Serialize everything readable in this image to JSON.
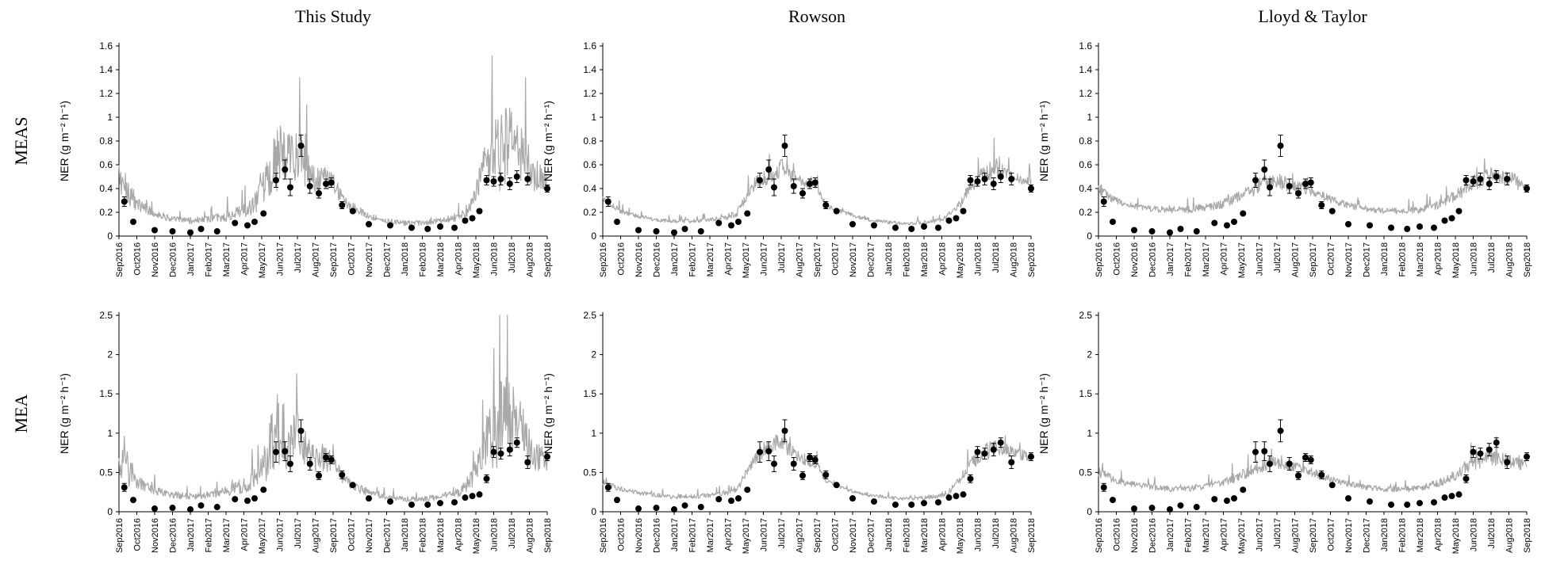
{
  "chart_data": {
    "type": "panel-grid",
    "columns": [
      "This Study",
      "Rowson",
      "Lloyd & Taylor"
    ],
    "rows": [
      {
        "label": "MEAS",
        "ylabel": "NER (g m⁻² h⁻¹)",
        "ylim": [
          0,
          1.6
        ],
        "yticks": [
          "0",
          "0.2",
          "0.4",
          "0.6",
          "0.8",
          "1",
          "1.2",
          "1.4",
          "1.6"
        ]
      },
      {
        "label": "MEA",
        "ylabel": "NER (g m⁻² h⁻¹)",
        "ylim": [
          0,
          2.5
        ],
        "yticks": [
          "0",
          "0.5",
          "1",
          "1.5",
          "2",
          "2.5"
        ]
      }
    ],
    "x_months": [
      "Sep2016",
      "Oct2016",
      "Nov2016",
      "Dec2016",
      "Jan2017",
      "Feb2017",
      "Mar2017",
      "Apr2017",
      "May2017",
      "Jun2017",
      "Jul2017",
      "Aug2017",
      "Sep2017",
      "Oct2017",
      "Nov2017",
      "Dec2017",
      "Jan2018",
      "Feb2018",
      "Mar2018",
      "Apr2018",
      "May2018",
      "Jun2018",
      "Jul2018",
      "Aug2018",
      "Sep2018"
    ],
    "observations": {
      "MEAS": {
        "t": [
          0.3,
          0.8,
          2.0,
          3.0,
          4.0,
          4.6,
          5.5,
          6.5,
          7.2,
          7.6,
          8.1,
          8.8,
          9.3,
          9.6,
          10.2,
          10.7,
          11.2,
          11.6,
          11.9,
          12.5,
          13.1,
          14.0,
          15.2,
          16.4,
          17.3,
          18.0,
          18.8,
          19.4,
          19.8,
          20.2,
          20.6,
          21.0,
          21.4,
          21.9,
          22.3,
          22.9,
          24.0
        ],
        "y": [
          0.29,
          0.12,
          0.05,
          0.04,
          0.03,
          0.06,
          0.04,
          0.11,
          0.09,
          0.12,
          0.19,
          0.47,
          0.56,
          0.41,
          0.76,
          0.42,
          0.36,
          0.44,
          0.45,
          0.26,
          0.21,
          0.1,
          0.09,
          0.07,
          0.06,
          0.08,
          0.07,
          0.13,
          0.15,
          0.21,
          0.47,
          0.46,
          0.48,
          0.44,
          0.5,
          0.48,
          0.4
        ],
        "err": [
          0.04,
          0,
          0,
          0,
          0,
          0,
          0,
          0,
          0,
          0,
          0,
          0.06,
          0.08,
          0.07,
          0.09,
          0.06,
          0.04,
          0.04,
          0.04,
          0.03,
          0,
          0,
          0,
          0,
          0,
          0,
          0,
          0,
          0,
          0,
          0.04,
          0.04,
          0.05,
          0.05,
          0.05,
          0.05,
          0.03
        ]
      },
      "MEA": {
        "t": [
          0.3,
          0.8,
          2.0,
          3.0,
          4.0,
          4.6,
          5.5,
          6.5,
          7.2,
          7.6,
          8.1,
          8.8,
          9.3,
          9.6,
          10.2,
          10.7,
          11.2,
          11.6,
          11.9,
          12.5,
          13.1,
          14.0,
          15.2,
          16.4,
          17.3,
          18.0,
          18.8,
          19.4,
          19.8,
          20.2,
          20.6,
          21.0,
          21.4,
          21.9,
          22.3,
          22.9,
          24.0
        ],
        "y": [
          0.31,
          0.15,
          0.04,
          0.05,
          0.03,
          0.08,
          0.06,
          0.16,
          0.14,
          0.17,
          0.28,
          0.76,
          0.77,
          0.61,
          1.03,
          0.61,
          0.46,
          0.69,
          0.66,
          0.47,
          0.34,
          0.17,
          0.13,
          0.09,
          0.09,
          0.11,
          0.12,
          0.18,
          0.2,
          0.22,
          0.42,
          0.76,
          0.74,
          0.79,
          0.88,
          0.63,
          0.7
        ],
        "err": [
          0.05,
          0,
          0,
          0,
          0,
          0,
          0,
          0,
          0,
          0,
          0,
          0.13,
          0.12,
          0.1,
          0.14,
          0.08,
          0.05,
          0.05,
          0.05,
          0.05,
          0,
          0,
          0,
          0,
          0,
          0,
          0,
          0,
          0,
          0,
          0.05,
          0.07,
          0.07,
          0.08,
          0.06,
          0.08,
          0.05
        ]
      }
    },
    "model_envelope": {
      "note": "estimated central model output; daily variability drawn as grey trace",
      "This Study": {
        "MEAS": {
          "t": [
            0,
            0.5,
            1,
            2,
            3,
            4,
            5,
            6,
            7,
            7.5,
            8,
            8.5,
            9,
            9.5,
            10,
            10.5,
            11,
            11.5,
            12,
            12.5,
            13,
            14,
            15,
            16,
            17,
            18,
            19,
            19.5,
            20,
            20.5,
            21,
            21.5,
            22,
            22.5,
            23,
            23.5,
            24
          ],
          "y": [
            0.45,
            0.33,
            0.25,
            0.18,
            0.13,
            0.12,
            0.13,
            0.15,
            0.18,
            0.22,
            0.3,
            0.45,
            0.6,
            0.55,
            0.62,
            0.5,
            0.42,
            0.45,
            0.42,
            0.3,
            0.24,
            0.16,
            0.12,
            0.1,
            0.1,
            0.12,
            0.15,
            0.2,
            0.3,
            0.5,
            0.55,
            0.62,
            0.68,
            0.6,
            0.5,
            0.45,
            0.42
          ],
          "amp": [
            0.2,
            0.25,
            0.1,
            0.06,
            0.05,
            0.05,
            0.05,
            0.08,
            0.12,
            0.14,
            0.25,
            0.45,
            0.55,
            0.45,
            0.4,
            0.3,
            0.2,
            0.18,
            0.15,
            0.1,
            0.08,
            0.05,
            0.04,
            0.04,
            0.04,
            0.05,
            0.07,
            0.1,
            0.2,
            0.35,
            0.55,
            0.7,
            0.55,
            0.45,
            0.35,
            0.25,
            0.15
          ]
        },
        "MEA": {
          "t": [
            0,
            0.5,
            1,
            2,
            3,
            4,
            5,
            6,
            7,
            7.5,
            8,
            8.5,
            9,
            9.5,
            10,
            10.5,
            11,
            11.5,
            12,
            12.5,
            13,
            14,
            15,
            16,
            17,
            18,
            19,
            19.5,
            20,
            20.5,
            21,
            21.5,
            22,
            22.5,
            23,
            23.5,
            24
          ],
          "y": [
            0.6,
            0.45,
            0.35,
            0.25,
            0.2,
            0.18,
            0.2,
            0.24,
            0.3,
            0.36,
            0.45,
            0.7,
            0.9,
            0.75,
            0.9,
            0.7,
            0.6,
            0.62,
            0.58,
            0.42,
            0.32,
            0.22,
            0.17,
            0.15,
            0.15,
            0.17,
            0.22,
            0.3,
            0.45,
            0.75,
            0.85,
            0.95,
            1.1,
            0.9,
            0.75,
            0.65,
            0.6
          ],
          "amp": [
            0.35,
            0.45,
            0.15,
            0.1,
            0.08,
            0.08,
            0.08,
            0.12,
            0.18,
            0.22,
            0.35,
            0.7,
            0.85,
            0.7,
            0.6,
            0.45,
            0.3,
            0.28,
            0.25,
            0.15,
            0.12,
            0.08,
            0.06,
            0.06,
            0.06,
            0.08,
            0.1,
            0.15,
            0.3,
            0.55,
            0.85,
            1.1,
            0.9,
            0.7,
            0.55,
            0.4,
            0.25
          ]
        }
      },
      "Rowson": {
        "MEAS": {
          "t": [
            0,
            1,
            2,
            3,
            4,
            5,
            6,
            7,
            7.5,
            8,
            8.5,
            9,
            9.5,
            10,
            10.5,
            11,
            11.5,
            12,
            12.5,
            13,
            14,
            15,
            16,
            17,
            18,
            19,
            19.5,
            20,
            20.5,
            21,
            21.5,
            22,
            22.5,
            23,
            24
          ],
          "y": [
            0.3,
            0.2,
            0.16,
            0.13,
            0.12,
            0.12,
            0.13,
            0.15,
            0.18,
            0.3,
            0.42,
            0.46,
            0.5,
            0.55,
            0.5,
            0.45,
            0.42,
            0.4,
            0.25,
            0.22,
            0.17,
            0.13,
            0.11,
            0.1,
            0.11,
            0.13,
            0.18,
            0.25,
            0.38,
            0.45,
            0.5,
            0.55,
            0.5,
            0.48,
            0.45
          ],
          "amp": [
            0.06,
            0.04,
            0.03,
            0.03,
            0.03,
            0.03,
            0.03,
            0.04,
            0.05,
            0.08,
            0.1,
            0.12,
            0.14,
            0.15,
            0.12,
            0.1,
            0.08,
            0.07,
            0.04,
            0.03,
            0.03,
            0.03,
            0.03,
            0.03,
            0.03,
            0.03,
            0.05,
            0.07,
            0.1,
            0.12,
            0.15,
            0.15,
            0.12,
            0.1,
            0.08
          ]
        },
        "MEA": {
          "t": [
            0,
            1,
            2,
            3,
            4,
            5,
            6,
            7,
            7.5,
            8,
            8.5,
            9,
            9.5,
            10,
            10.5,
            11,
            11.5,
            12,
            12.5,
            13,
            14,
            15,
            16,
            17,
            18,
            19,
            19.5,
            20,
            20.5,
            21,
            21.5,
            22,
            22.5,
            23,
            24
          ],
          "y": [
            0.35,
            0.28,
            0.23,
            0.2,
            0.18,
            0.18,
            0.2,
            0.23,
            0.28,
            0.45,
            0.65,
            0.72,
            0.8,
            0.85,
            0.75,
            0.68,
            0.62,
            0.58,
            0.38,
            0.33,
            0.25,
            0.2,
            0.17,
            0.16,
            0.17,
            0.2,
            0.26,
            0.38,
            0.55,
            0.65,
            0.72,
            0.8,
            0.75,
            0.72,
            0.68
          ],
          "amp": [
            0.08,
            0.06,
            0.05,
            0.05,
            0.05,
            0.05,
            0.05,
            0.06,
            0.08,
            0.12,
            0.15,
            0.18,
            0.2,
            0.22,
            0.18,
            0.15,
            0.12,
            0.1,
            0.06,
            0.05,
            0.04,
            0.04,
            0.04,
            0.04,
            0.04,
            0.05,
            0.07,
            0.1,
            0.14,
            0.17,
            0.2,
            0.2,
            0.18,
            0.15,
            0.12
          ]
        }
      },
      "Lloyd & Taylor": {
        "MEAS": {
          "t": [
            0,
            1,
            2,
            3,
            4,
            5,
            6,
            7,
            8,
            9,
            10,
            11,
            12,
            13,
            14,
            15,
            16,
            17,
            18,
            19,
            20,
            21,
            22,
            23,
            24
          ],
          "y": [
            0.38,
            0.28,
            0.24,
            0.22,
            0.21,
            0.21,
            0.23,
            0.26,
            0.32,
            0.4,
            0.44,
            0.4,
            0.36,
            0.3,
            0.25,
            0.22,
            0.2,
            0.2,
            0.21,
            0.25,
            0.32,
            0.42,
            0.48,
            0.46,
            0.4
          ],
          "amp": [
            0.1,
            0.06,
            0.05,
            0.05,
            0.05,
            0.05,
            0.06,
            0.07,
            0.09,
            0.12,
            0.12,
            0.1,
            0.08,
            0.06,
            0.05,
            0.05,
            0.05,
            0.05,
            0.05,
            0.07,
            0.09,
            0.12,
            0.14,
            0.12,
            0.1
          ]
        },
        "MEA": {
          "t": [
            0,
            1,
            2,
            3,
            4,
            5,
            6,
            7,
            8,
            9,
            10,
            11,
            12,
            13,
            14,
            15,
            16,
            17,
            18,
            19,
            20,
            21,
            22,
            23,
            24
          ],
          "y": [
            0.48,
            0.38,
            0.33,
            0.3,
            0.28,
            0.28,
            0.31,
            0.35,
            0.44,
            0.55,
            0.6,
            0.55,
            0.48,
            0.4,
            0.34,
            0.3,
            0.27,
            0.27,
            0.29,
            0.34,
            0.44,
            0.58,
            0.65,
            0.62,
            0.55
          ],
          "amp": [
            0.12,
            0.08,
            0.07,
            0.07,
            0.07,
            0.07,
            0.08,
            0.09,
            0.12,
            0.16,
            0.16,
            0.13,
            0.1,
            0.08,
            0.07,
            0.07,
            0.07,
            0.07,
            0.07,
            0.09,
            0.12,
            0.16,
            0.18,
            0.16,
            0.13
          ]
        }
      }
    }
  }
}
